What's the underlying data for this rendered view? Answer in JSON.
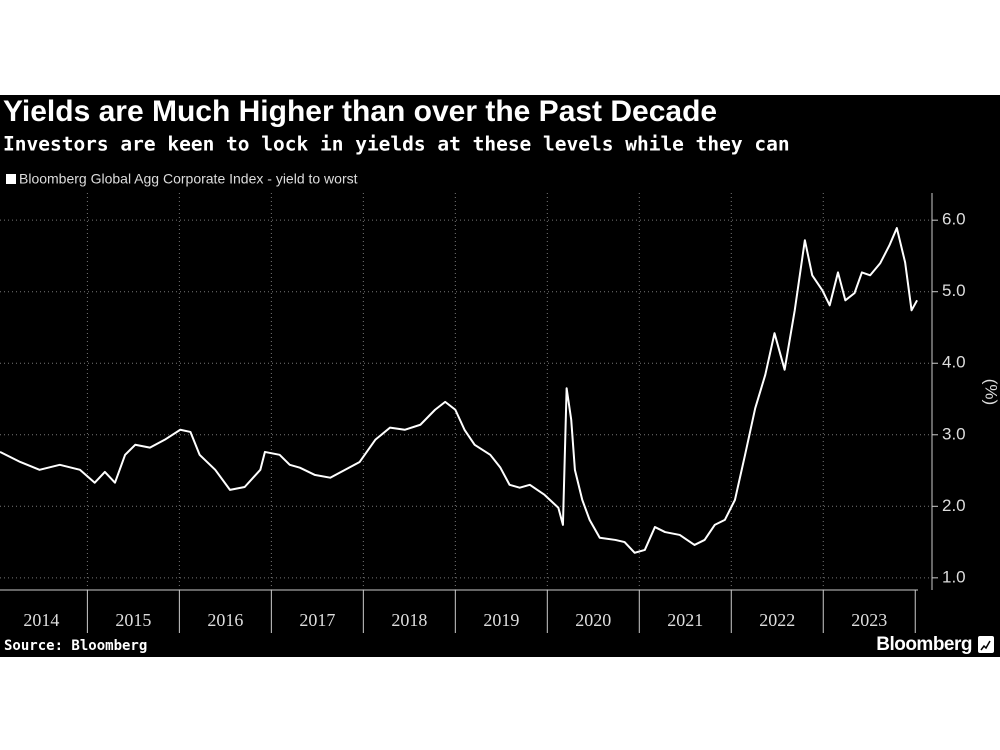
{
  "chart_data": {
    "type": "line",
    "title": "Yields are Much Higher than over the Past Decade",
    "subtitle": "Investors are keen to lock in yields at these levels while they can",
    "y_label": "(%)",
    "source": "Source: Bloomberg",
    "brand": "Bloomberg",
    "grid": true,
    "xlim": [
      2014.05,
      2024.03
    ],
    "ylim": [
      0.83,
      6.38
    ],
    "xticks": [
      {
        "value": 2014.5,
        "label": "2014"
      },
      {
        "value": 2015.5,
        "label": "2015"
      },
      {
        "value": 2016.5,
        "label": "2016"
      },
      {
        "value": 2017.5,
        "label": "2017"
      },
      {
        "value": 2018.5,
        "label": "2018"
      },
      {
        "value": 2019.5,
        "label": "2019"
      },
      {
        "value": 2020.5,
        "label": "2020"
      },
      {
        "value": 2021.5,
        "label": "2021"
      },
      {
        "value": 2022.5,
        "label": "2022"
      },
      {
        "value": 2023.5,
        "label": "2023"
      }
    ],
    "yticks": [
      {
        "value": 1,
        "label": "1.0"
      },
      {
        "value": 2,
        "label": "2.0"
      },
      {
        "value": 3,
        "label": "3.0"
      },
      {
        "value": 4,
        "label": "4.0"
      },
      {
        "value": 5,
        "label": "5.0"
      },
      {
        "value": 6,
        "label": "6.0"
      }
    ],
    "x": [
      2014.05,
      2014.27,
      2014.48,
      2014.7,
      2014.92,
      2015.08,
      2015.19,
      2015.3,
      2015.41,
      2015.52,
      2015.68,
      2015.84,
      2016.01,
      2016.12,
      2016.22,
      2016.39,
      2016.55,
      2016.71,
      2016.88,
      2016.93,
      2017.09,
      2017.2,
      2017.31,
      2017.47,
      2017.64,
      2017.8,
      2017.96,
      2018.13,
      2018.29,
      2018.45,
      2018.62,
      2018.78,
      2018.89,
      2019.0,
      2019.1,
      2019.21,
      2019.38,
      2019.49,
      2019.59,
      2019.7,
      2019.81,
      2019.97,
      2020.12,
      2020.17,
      2020.21,
      2020.26,
      2020.3,
      2020.38,
      2020.46,
      2020.57,
      2020.74,
      2020.84,
      2020.95,
      2021.06,
      2021.17,
      2021.28,
      2021.44,
      2021.6,
      2021.71,
      2021.82,
      2021.93,
      2022.04,
      2022.15,
      2022.26,
      2022.37,
      2022.47,
      2022.58,
      2022.69,
      2022.8,
      2022.88,
      2022.99,
      2023.07,
      2023.16,
      2023.24,
      2023.34,
      2023.42,
      2023.51,
      2023.62,
      2023.72,
      2023.8,
      2023.89,
      2023.96,
      2024.02
    ],
    "series": [
      {
        "name": "Bloomberg Global Agg Corporate Index - yield to worst",
        "color": "#ffffff",
        "values": [
          2.76,
          2.62,
          2.51,
          2.58,
          2.51,
          2.33,
          2.48,
          2.33,
          2.72,
          2.86,
          2.82,
          2.93,
          3.07,
          3.04,
          2.72,
          2.51,
          2.23,
          2.27,
          2.51,
          2.76,
          2.72,
          2.58,
          2.54,
          2.44,
          2.4,
          2.51,
          2.62,
          2.93,
          3.1,
          3.07,
          3.14,
          3.35,
          3.46,
          3.35,
          3.07,
          2.86,
          2.72,
          2.54,
          2.3,
          2.26,
          2.3,
          2.16,
          1.98,
          1.74,
          3.65,
          3.21,
          2.51,
          2.09,
          1.81,
          1.56,
          1.53,
          1.5,
          1.35,
          1.39,
          1.71,
          1.64,
          1.6,
          1.46,
          1.53,
          1.74,
          1.81,
          2.09,
          2.72,
          3.37,
          3.84,
          4.42,
          3.91,
          4.74,
          5.72,
          5.23,
          5.02,
          4.81,
          5.27,
          4.88,
          4.98,
          5.27,
          5.23,
          5.4,
          5.65,
          5.89,
          5.41,
          4.74,
          4.88
        ]
      }
    ]
  }
}
